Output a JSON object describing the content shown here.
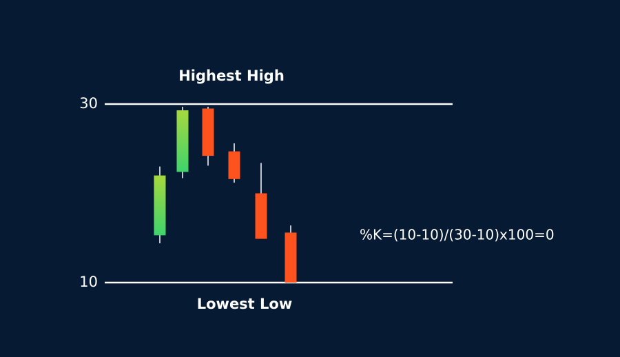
{
  "chart_data": {
    "type": "candlestick",
    "open": [
      15.3,
      22.4,
      29.5,
      24.7,
      20.0,
      15.6
    ],
    "high": [
      23.0,
      29.7,
      29.7,
      25.6,
      23.4,
      16.4
    ],
    "low": [
      14.4,
      21.7,
      23.1,
      21.2,
      14.9,
      10
    ],
    "close": [
      22.0,
      29.3,
      24.2,
      21.6,
      14.9,
      10
    ],
    "up_colors": [
      "#a6d83e",
      "#3fd46c"
    ],
    "down_color": "#ff531f",
    "ylim": [
      10,
      30
    ],
    "yticks": [
      10,
      30
    ],
    "grid": true,
    "annotations": [
      "Highest High",
      "Lowest Low",
      "%K=(10-10)/(30-10)x100=0"
    ]
  }
}
